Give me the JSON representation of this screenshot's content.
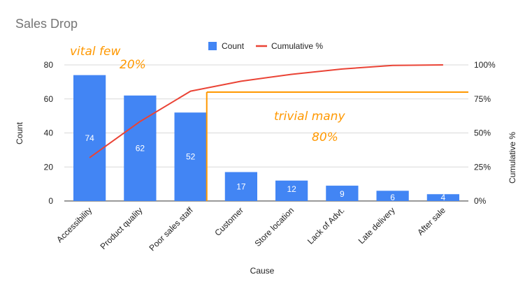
{
  "chart_data": {
    "type": "bar",
    "title": "Sales Drop",
    "xlabel": "Cause",
    "ylabel": "Count",
    "y2label": "Cumulative %",
    "categories": [
      "Accessibility",
      "Product quality",
      "Poor sales staff",
      "Customer",
      "Store location",
      "Lack of Advt.",
      "Late delivery",
      "After sale"
    ],
    "series": [
      {
        "name": "Count",
        "type": "bar",
        "axis": "left",
        "values": [
          74,
          62,
          52,
          17,
          12,
          9,
          6,
          4
        ]
      },
      {
        "name": "Cumulative %",
        "type": "line",
        "axis": "right",
        "values": [
          31.8,
          58.4,
          80.7,
          88.0,
          93.1,
          97.0,
          99.6,
          100
        ]
      }
    ],
    "ylim": [
      0,
      80
    ],
    "yticks": [
      "0",
      "20",
      "40",
      "60",
      "80"
    ],
    "y2lim": [
      0,
      100
    ],
    "y2ticks": [
      "0%",
      "25%",
      "50%",
      "75%",
      "100%"
    ],
    "data_labels": [
      "74",
      "62",
      "52",
      "17",
      "12",
      "9",
      "6",
      "4"
    ],
    "legend": {
      "position": "top",
      "entries": [
        "Count",
        "Cumulative %"
      ]
    },
    "grid": true,
    "annotations": {
      "vital_label": "vital few",
      "vital_pct": "20%",
      "trivial_label": "trivial many",
      "trivial_pct": "80%",
      "threshold_pct": 80,
      "divider_after_category": "Poor sales staff"
    },
    "colors": {
      "bar": "#4285f4",
      "line": "#ea4335",
      "annotation": "#ff9800",
      "grid": "#d9d9d9",
      "text": "#222222",
      "title": "#757575"
    }
  }
}
